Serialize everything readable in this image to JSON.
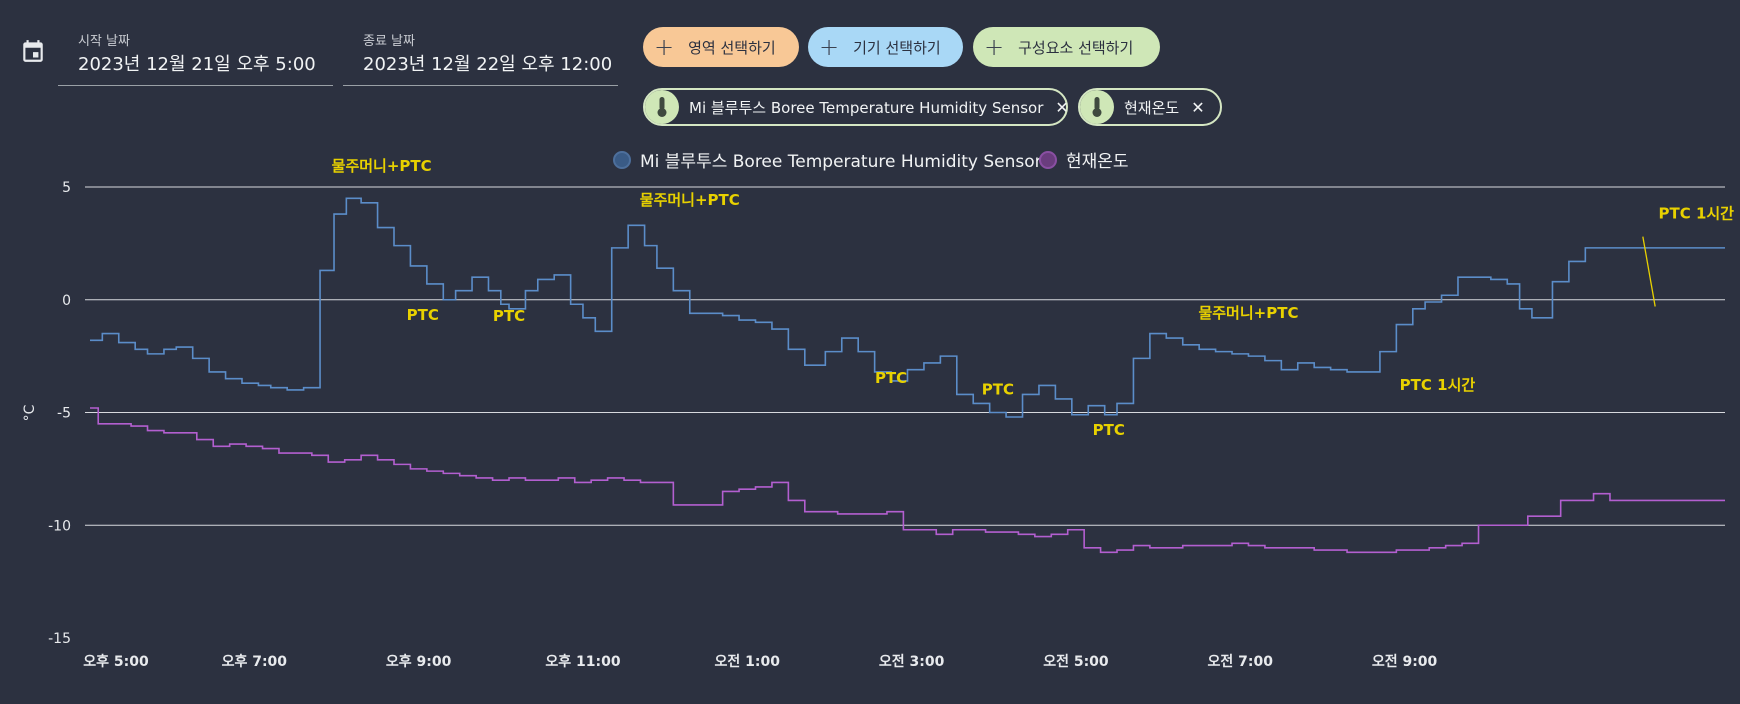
{
  "header": {
    "start": {
      "label": "시작 날짜",
      "value": "2023년 12월 21일 오후 5:00"
    },
    "end": {
      "label": "종료 날짜",
      "value": "2023년 12월 22일 오후 12:00"
    }
  },
  "buttons": {
    "area": "영역 선택하기",
    "device": "기기 선택하기",
    "entity": "구성요소 선택하기"
  },
  "chips": {
    "sensor": "Mi 블루투스 Boree Temperature Humidity Sensor",
    "current": "현재온도"
  },
  "colors": {
    "sensor": "#5b8dc9",
    "current": "#b35fd0",
    "annotation": "#e8d100"
  },
  "chart_data": {
    "type": "line",
    "step": true,
    "ylabel": "°C",
    "ylim": [
      -15,
      5
    ],
    "yticks": [
      "5",
      "0",
      "-5",
      "-10",
      "-15"
    ],
    "x_range": [
      17,
      36.9
    ],
    "xticks": [
      {
        "x": 17,
        "label": "오후 5:00"
      },
      {
        "x": 19,
        "label": "오후 7:00"
      },
      {
        "x": 21,
        "label": "오후 9:00"
      },
      {
        "x": 23,
        "label": "오후 11:00"
      },
      {
        "x": 25,
        "label": "오전 1:00"
      },
      {
        "x": 27,
        "label": "오전 3:00"
      },
      {
        "x": 29,
        "label": "오전 5:00"
      },
      {
        "x": 31,
        "label": "오전 7:00"
      },
      {
        "x": 33,
        "label": "오전 9:00"
      }
    ],
    "series": [
      {
        "name": "Mi 블루투스 Boree Temperature Humidity Sensor",
        "x": [
          17.0,
          17.15,
          17.35,
          17.55,
          17.7,
          17.9,
          18.05,
          18.25,
          18.45,
          18.65,
          18.85,
          19.05,
          19.2,
          19.4,
          19.6,
          19.8,
          19.97,
          20.12,
          20.3,
          20.5,
          20.7,
          20.9,
          21.1,
          21.3,
          21.45,
          21.65,
          21.85,
          22.0,
          22.1,
          22.3,
          22.45,
          22.65,
          22.85,
          23.0,
          23.15,
          23.35,
          23.55,
          23.75,
          23.9,
          24.1,
          24.3,
          24.5,
          24.7,
          24.9,
          25.1,
          25.3,
          25.5,
          25.7,
          25.95,
          26.15,
          26.35,
          26.55,
          26.75,
          26.95,
          27.15,
          27.35,
          27.55,
          27.75,
          27.95,
          28.15,
          28.35,
          28.55,
          28.75,
          28.95,
          29.15,
          29.35,
          29.5,
          29.7,
          29.9,
          30.1,
          30.3,
          30.5,
          30.7,
          30.9,
          31.1,
          31.3,
          31.5,
          31.7,
          31.9,
          32.1,
          32.3,
          32.5,
          32.7,
          32.9,
          33.1,
          33.25,
          33.45,
          33.65,
          33.85,
          34.05,
          34.25,
          34.4,
          34.55,
          34.8,
          35.0,
          35.2,
          35.4,
          35.6,
          35.8,
          36.0,
          36.2,
          36.4,
          36.6,
          36.9
        ],
        "y": [
          -1.8,
          -1.5,
          -1.9,
          -2.2,
          -2.4,
          -2.2,
          -2.1,
          -2.6,
          -3.2,
          -3.5,
          -3.7,
          -3.8,
          -3.9,
          -4.0,
          -3.9,
          1.3,
          3.8,
          4.5,
          4.3,
          3.2,
          2.4,
          1.5,
          0.7,
          0.0,
          0.4,
          1.0,
          0.4,
          -0.2,
          -0.4,
          0.4,
          0.9,
          1.1,
          -0.2,
          -0.8,
          -1.4,
          2.3,
          3.3,
          2.4,
          1.4,
          0.4,
          -0.6,
          -0.6,
          -0.7,
          -0.9,
          -1.0,
          -1.3,
          -2.2,
          -2.9,
          -2.3,
          -1.7,
          -2.3,
          -3.2,
          -3.6,
          -3.1,
          -2.8,
          -2.5,
          -4.2,
          -4.6,
          -5.0,
          -5.2,
          -4.2,
          -3.8,
          -4.4,
          -5.1,
          -4.7,
          -5.1,
          -4.6,
          -2.6,
          -1.5,
          -1.7,
          -2.0,
          -2.2,
          -2.3,
          -2.4,
          -2.5,
          -2.7,
          -3.1,
          -2.8,
          -3.0,
          -3.1,
          -3.2,
          -3.2,
          -2.3,
          -1.1,
          -0.4,
          -0.1,
          0.2,
          1.0,
          1.0,
          0.9,
          0.7,
          -0.4,
          -0.8,
          0.8,
          1.7,
          2.3,
          2.3,
          2.3,
          2.3,
          2.3,
          2.3,
          2.3,
          2.3,
          2.3
        ]
      },
      {
        "name": "현재온도",
        "x": [
          17.0,
          17.1,
          17.3,
          17.5,
          17.7,
          17.9,
          18.1,
          18.3,
          18.5,
          18.7,
          18.9,
          19.1,
          19.3,
          19.5,
          19.7,
          19.9,
          20.1,
          20.3,
          20.5,
          20.7,
          20.9,
          21.1,
          21.3,
          21.5,
          21.7,
          21.9,
          22.1,
          22.3,
          22.5,
          22.7,
          22.9,
          23.1,
          23.3,
          23.5,
          23.7,
          23.9,
          24.1,
          24.3,
          24.5,
          24.7,
          24.9,
          25.1,
          25.3,
          25.5,
          25.7,
          25.9,
          26.1,
          26.3,
          26.5,
          26.7,
          26.9,
          27.1,
          27.3,
          27.5,
          27.7,
          27.9,
          28.1,
          28.3,
          28.5,
          28.7,
          28.9,
          29.1,
          29.3,
          29.5,
          29.7,
          29.9,
          30.1,
          30.3,
          30.5,
          30.7,
          30.9,
          31.1,
          31.3,
          31.5,
          31.7,
          31.9,
          32.1,
          32.3,
          32.5,
          32.7,
          32.9,
          33.1,
          33.3,
          33.5,
          33.7,
          33.9,
          34.1,
          34.3,
          34.5,
          34.7,
          34.9,
          35.1,
          35.3,
          35.5,
          35.7,
          35.9,
          36.1,
          36.3,
          36.5,
          36.9
        ],
        "y": [
          -4.8,
          -5.5,
          -5.5,
          -5.6,
          -5.8,
          -5.9,
          -5.9,
          -6.2,
          -6.5,
          -6.4,
          -6.5,
          -6.6,
          -6.8,
          -6.8,
          -6.9,
          -7.2,
          -7.1,
          -6.9,
          -7.1,
          -7.3,
          -7.5,
          -7.6,
          -7.7,
          -7.8,
          -7.9,
          -8.0,
          -7.9,
          -8.0,
          -8.0,
          -7.9,
          -8.1,
          -8.0,
          -7.9,
          -8.0,
          -8.1,
          -8.1,
          -9.1,
          -9.1,
          -9.1,
          -8.5,
          -8.4,
          -8.3,
          -8.1,
          -8.9,
          -9.4,
          -9.4,
          -9.5,
          -9.5,
          -9.5,
          -9.4,
          -10.2,
          -10.2,
          -10.4,
          -10.2,
          -10.2,
          -10.3,
          -10.3,
          -10.4,
          -10.5,
          -10.4,
          -10.2,
          -11.0,
          -11.2,
          -11.1,
          -10.9,
          -11.0,
          -11.0,
          -10.9,
          -10.9,
          -10.9,
          -10.8,
          -10.9,
          -11.0,
          -11.0,
          -11.0,
          -11.1,
          -11.1,
          -11.2,
          -11.2,
          -11.2,
          -11.1,
          -11.1,
          -11.0,
          -10.9,
          -10.8,
          -10.0,
          -10.0,
          -10.0,
          -9.6,
          -9.6,
          -8.9,
          -8.9,
          -8.6,
          -8.9,
          -8.9,
          -8.9,
          -8.9,
          -8.9,
          -8.9,
          -8.9
        ]
      }
    ],
    "annotations": [
      {
        "text": "물주머니+PTC",
        "x": 20.55,
        "y": 5.7
      },
      {
        "text": "PTC",
        "x": 21.05,
        "y": -0.9
      },
      {
        "text": "PTC",
        "x": 22.1,
        "y": -0.95
      },
      {
        "text": "물주머니+PTC",
        "x": 24.3,
        "y": 4.2
      },
      {
        "text": "PTC",
        "x": 26.75,
        "y": -3.7
      },
      {
        "text": "PTC",
        "x": 28.05,
        "y": -4.2
      },
      {
        "text": "PTC",
        "x": 29.4,
        "y": -6.0
      },
      {
        "text": "물주머니+PTC",
        "x": 31.1,
        "y": -0.8
      },
      {
        "text": "PTC  1시간",
        "x": 33.4,
        "y": -4.0
      },
      {
        "text": "PTC  1시간",
        "x": 36.55,
        "y": 3.6
      }
    ],
    "callout_line": {
      "from": [
        35.9,
        2.8
      ],
      "to": [
        36.05,
        -0.3
      ]
    }
  }
}
